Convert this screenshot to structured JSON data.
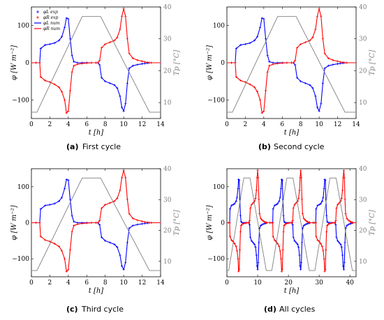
{
  "figure": {
    "panels": [
      {
        "caption_letter": "(a)",
        "caption_text": "First cycle"
      },
      {
        "caption_letter": "(b)",
        "caption_text": "Second cycle"
      },
      {
        "caption_letter": "(c)",
        "caption_text": "Third cycle"
      },
      {
        "caption_letter": "(d)",
        "caption_text": "All cycles"
      }
    ],
    "colors": {
      "blue": "#0000ff",
      "red": "#ff0000",
      "gray": "#7f7f7f"
    }
  },
  "chart_data": [
    {
      "type": "line",
      "panel": "a",
      "xlabel": "t [h]",
      "ylabel": "φ [W m⁻²]",
      "y2label": "Tp [°C]",
      "xlim": [
        0,
        14
      ],
      "ylim": [
        -150,
        150
      ],
      "y2lim": [
        5,
        40
      ],
      "xticks": [
        0,
        2,
        4,
        6,
        8,
        10,
        12,
        14
      ],
      "yticks": [
        -100,
        0,
        100
      ],
      "y2ticks": [
        10,
        20,
        30,
        40
      ],
      "legend": [
        "φL exp",
        "φR exp",
        "φL num",
        "φR num"
      ],
      "legend_position": "top-left",
      "series": [
        {
          "name": "φL",
          "color": "#0000ff",
          "x": [
            0,
            0.5,
            0.9,
            1,
            1.5,
            2,
            2.5,
            3,
            3.3,
            3.6,
            3.8,
            4,
            4.2,
            4.4,
            4.6,
            5,
            5.5,
            6,
            6.5,
            7,
            7.2,
            7.4,
            7.6,
            8,
            8.5,
            9,
            9.3,
            9.6,
            9.8,
            10,
            10.2,
            10.4,
            10.6,
            11,
            11.5,
            12,
            12.3,
            12.6,
            12.8,
            13,
            14
          ],
          "y": [
            0,
            0,
            0,
            38,
            48,
            50,
            53,
            60,
            70,
            95,
            120,
            118,
            65,
            20,
            3,
            0,
            0,
            0,
            0,
            0,
            0,
            -6,
            -40,
            -50,
            -55,
            -60,
            -68,
            -90,
            -120,
            -130,
            -110,
            -55,
            -15,
            -8,
            -5,
            -3,
            -2,
            -1,
            0,
            0,
            0
          ]
        },
        {
          "name": "φR",
          "color": "#ff0000",
          "x": [
            0,
            0.5,
            0.9,
            1,
            1.5,
            2,
            2.5,
            3,
            3.3,
            3.6,
            3.8,
            4,
            4.2,
            4.4,
            4.6,
            5,
            5.5,
            6,
            6.5,
            7,
            7.2,
            7.4,
            7.6,
            8,
            8.5,
            9,
            9.3,
            9.6,
            9.8,
            10,
            10.2,
            10.4,
            10.6,
            11,
            11.5,
            12,
            12.3,
            12.6,
            12.8,
            13,
            14
          ],
          "y": [
            0,
            0,
            0,
            -38,
            -48,
            -52,
            -58,
            -66,
            -78,
            -100,
            -135,
            -130,
            -75,
            -25,
            -8,
            -4,
            -2,
            -1,
            0,
            0,
            0,
            6,
            40,
            50,
            55,
            60,
            68,
            90,
            125,
            145,
            125,
            65,
            25,
            12,
            7,
            4,
            2,
            1,
            0,
            0,
            0
          ]
        },
        {
          "name": "Tp",
          "color": "#7f7f7f",
          "axis": "right",
          "x": [
            0,
            0.6,
            5.5,
            7.5,
            12.8,
            14
          ],
          "y": [
            7,
            7,
            37,
            37,
            7,
            7
          ]
        }
      ]
    },
    {
      "type": "line",
      "panel": "b",
      "xlabel": "t [h]",
      "ylabel": "φ [W m⁻²]",
      "y2label": "Tp [°C]",
      "xlim": [
        0,
        14
      ],
      "ylim": [
        -150,
        150
      ],
      "y2lim": [
        5,
        40
      ],
      "xticks": [
        0,
        2,
        4,
        6,
        8,
        10,
        12,
        14
      ],
      "yticks": [
        -100,
        0,
        100
      ],
      "y2ticks": [
        10,
        20,
        30,
        40
      ],
      "series": [
        {
          "name": "φL",
          "color": "#0000ff",
          "x": [
            0,
            0.5,
            0.9,
            1,
            1.5,
            2,
            2.5,
            3,
            3.3,
            3.6,
            3.8,
            4,
            4.2,
            4.4,
            4.6,
            5,
            5.5,
            6,
            6.5,
            7,
            7.2,
            7.4,
            7.6,
            8,
            8.5,
            9,
            9.3,
            9.6,
            9.8,
            10,
            10.2,
            10.4,
            10.6,
            11,
            11.5,
            12,
            12.3,
            12.6,
            12.8,
            13,
            14
          ],
          "y": [
            0,
            0,
            0,
            38,
            48,
            50,
            53,
            60,
            70,
            95,
            120,
            118,
            65,
            20,
            3,
            0,
            0,
            0,
            0,
            0,
            0,
            -6,
            -40,
            -50,
            -55,
            -60,
            -68,
            -90,
            -120,
            -130,
            -110,
            -55,
            -15,
            -8,
            -5,
            -3,
            -2,
            -1,
            0,
            0,
            0
          ]
        },
        {
          "name": "φR",
          "color": "#ff0000",
          "x": [
            0,
            0.5,
            0.9,
            1,
            1.5,
            2,
            2.5,
            3,
            3.3,
            3.6,
            3.8,
            4,
            4.2,
            4.4,
            4.6,
            5,
            5.5,
            6,
            6.5,
            7,
            7.2,
            7.4,
            7.6,
            8,
            8.5,
            9,
            9.3,
            9.6,
            9.8,
            10,
            10.2,
            10.4,
            10.6,
            11,
            11.5,
            12,
            12.3,
            12.6,
            12.8,
            13,
            14
          ],
          "y": [
            0,
            0,
            0,
            -38,
            -48,
            -52,
            -58,
            -66,
            -78,
            -100,
            -135,
            -130,
            -75,
            -25,
            -8,
            -4,
            -2,
            -1,
            0,
            0,
            0,
            6,
            40,
            50,
            55,
            60,
            68,
            90,
            125,
            145,
            125,
            65,
            25,
            12,
            7,
            4,
            2,
            1,
            0,
            0,
            0
          ]
        },
        {
          "name": "Tp",
          "color": "#7f7f7f",
          "axis": "right",
          "x": [
            0,
            0.6,
            5.5,
            7.5,
            12.8,
            14
          ],
          "y": [
            7,
            7,
            37,
            37,
            7,
            7
          ]
        }
      ]
    },
    {
      "type": "line",
      "panel": "c",
      "xlabel": "t [h]",
      "ylabel": "φ [W m⁻²]",
      "y2label": "Tp [°C]",
      "xlim": [
        0,
        14
      ],
      "ylim": [
        -150,
        150
      ],
      "y2lim": [
        5,
        40
      ],
      "xticks": [
        0,
        2,
        4,
        6,
        8,
        10,
        12,
        14
      ],
      "yticks": [
        -100,
        0,
        100
      ],
      "y2ticks": [
        10,
        20,
        30,
        40
      ],
      "series": [
        {
          "name": "φL",
          "color": "#0000ff",
          "x": [
            0,
            0.5,
            0.9,
            1,
            1.5,
            2,
            2.5,
            3,
            3.3,
            3.6,
            3.8,
            4,
            4.2,
            4.4,
            4.6,
            5,
            5.5,
            6,
            6.5,
            7,
            7.2,
            7.4,
            7.6,
            8,
            8.5,
            9,
            9.3,
            9.6,
            9.8,
            10,
            10.2,
            10.4,
            10.6,
            11,
            11.5,
            12,
            12.3,
            12.6,
            12.8,
            13,
            14
          ],
          "y": [
            0,
            0,
            0,
            38,
            48,
            50,
            53,
            60,
            70,
            95,
            120,
            118,
            65,
            20,
            3,
            0,
            0,
            0,
            0,
            0,
            0,
            -6,
            -40,
            -50,
            -55,
            -60,
            -68,
            -90,
            -120,
            -130,
            -110,
            -55,
            -15,
            -8,
            -5,
            -3,
            -2,
            -1,
            0,
            0,
            0
          ]
        },
        {
          "name": "φR",
          "color": "#ff0000",
          "x": [
            0,
            0.5,
            0.9,
            1,
            1.5,
            2,
            2.5,
            3,
            3.3,
            3.6,
            3.8,
            4,
            4.2,
            4.4,
            4.6,
            5,
            5.5,
            6,
            6.5,
            7,
            7.2,
            7.4,
            7.6,
            8,
            8.5,
            9,
            9.3,
            9.6,
            9.8,
            10,
            10.2,
            10.4,
            10.6,
            11,
            11.5,
            12,
            12.3,
            12.6,
            12.8,
            13,
            14
          ],
          "y": [
            0,
            0,
            0,
            -38,
            -48,
            -52,
            -58,
            -66,
            -78,
            -100,
            -135,
            -130,
            -75,
            -25,
            -8,
            -4,
            -2,
            -1,
            0,
            0,
            0,
            6,
            40,
            50,
            55,
            60,
            68,
            90,
            125,
            145,
            125,
            65,
            25,
            12,
            7,
            4,
            2,
            1,
            0,
            0,
            0
          ]
        },
        {
          "name": "Tp",
          "color": "#7f7f7f",
          "axis": "right",
          "x": [
            0,
            0.6,
            5.5,
            7.5,
            12.8,
            14
          ],
          "y": [
            7,
            7,
            37,
            37,
            7,
            7
          ]
        }
      ]
    },
    {
      "type": "line",
      "panel": "d",
      "xlabel": "t [h]",
      "ylabel": "φ [W m⁻²]",
      "y2label": "Tp [°C]",
      "xlim": [
        0,
        42
      ],
      "ylim": [
        -150,
        150
      ],
      "y2lim": [
        5,
        40
      ],
      "xticks": [
        0,
        10,
        20,
        30,
        40
      ],
      "yticks": [
        -100,
        0,
        100
      ],
      "y2ticks": [
        10,
        20,
        30,
        40
      ],
      "cycles": 3,
      "cycle_length_h": 14,
      "series": [
        {
          "name": "φL",
          "color": "#0000ff",
          "repeats_panel": "a"
        },
        {
          "name": "φR",
          "color": "#ff0000",
          "repeats_panel": "a"
        },
        {
          "name": "Tp",
          "color": "#7f7f7f",
          "axis": "right",
          "repeats_panel": "a"
        }
      ]
    }
  ]
}
